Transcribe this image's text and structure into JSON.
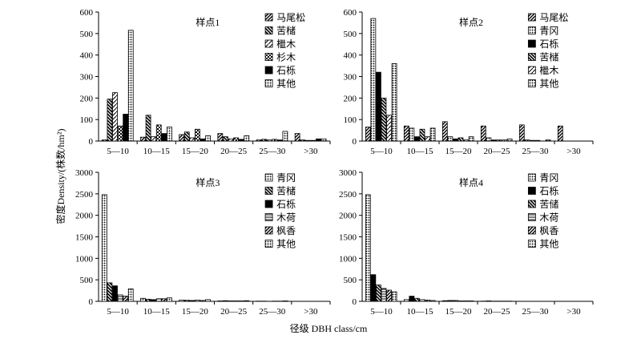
{
  "figure": {
    "ylabel": "密度Density/(株数/hm²)",
    "xlabel": "径级 DBH class/cm"
  },
  "chart_data": [
    {
      "type": "bar",
      "title": "样点1",
      "categories": [
        "5—10",
        "10—15",
        "15—20",
        "20—25",
        "25—30",
        ">30"
      ],
      "ylim": [
        0,
        600
      ],
      "yticks": [
        0,
        100,
        200,
        300,
        400,
        500,
        600
      ],
      "series": [
        {
          "name": "马尾松",
          "pattern": "slash",
          "values": [
            5,
            18,
            30,
            35,
            5,
            35
          ]
        },
        {
          "name": "苦槠",
          "pattern": "bdiag",
          "values": [
            195,
            120,
            42,
            20,
            8,
            5
          ]
        },
        {
          "name": "檵木",
          "pattern": "hatch",
          "values": [
            225,
            20,
            15,
            10,
            5,
            3
          ]
        },
        {
          "name": "杉木",
          "pattern": "grid",
          "values": [
            70,
            75,
            55,
            15,
            8,
            3
          ]
        },
        {
          "name": "石栎",
          "pattern": "solid",
          "values": [
            125,
            35,
            10,
            8,
            5,
            10
          ]
        },
        {
          "name": "其他",
          "pattern": "dots",
          "values": [
            515,
            65,
            25,
            25,
            45,
            10
          ]
        }
      ]
    },
    {
      "type": "bar",
      "title": "样点2",
      "categories": [
        "5—10",
        "10—15",
        "15—20",
        "20—25",
        "25—30",
        ">30"
      ],
      "ylim": [
        0,
        600
      ],
      "yticks": [
        0,
        100,
        200,
        300,
        400,
        500,
        600
      ],
      "series": [
        {
          "name": "马尾松",
          "pattern": "slash",
          "values": [
            65,
            70,
            90,
            70,
            75,
            70
          ]
        },
        {
          "name": "青冈",
          "pattern": "dots",
          "values": [
            570,
            60,
            20,
            15,
            5,
            0
          ]
        },
        {
          "name": "石栎",
          "pattern": "solid",
          "values": [
            320,
            20,
            10,
            5,
            3,
            0
          ]
        },
        {
          "name": "苦槠",
          "pattern": "bdiag",
          "values": [
            200,
            55,
            15,
            5,
            3,
            0
          ]
        },
        {
          "name": "檵木",
          "pattern": "hatch",
          "values": [
            120,
            20,
            5,
            5,
            0,
            0
          ]
        },
        {
          "name": "其他",
          "pattern": "dots",
          "values": [
            360,
            60,
            20,
            10,
            5,
            0
          ]
        }
      ]
    },
    {
      "type": "bar",
      "title": "样点3",
      "categories": [
        "5—10",
        "10—15",
        "15—20",
        "20—25",
        "25—30",
        ">30"
      ],
      "ylim": [
        0,
        3000
      ],
      "yticks": [
        0,
        500,
        1000,
        1500,
        2000,
        2500,
        3000
      ],
      "series": [
        {
          "name": "青冈",
          "pattern": "dots",
          "values": [
            2480,
            70,
            30,
            10,
            5,
            0
          ]
        },
        {
          "name": "苦槠",
          "pattern": "bdiag",
          "values": [
            430,
            50,
            25,
            15,
            5,
            0
          ]
        },
        {
          "name": "石栎",
          "pattern": "solid",
          "values": [
            360,
            40,
            20,
            10,
            0,
            0
          ]
        },
        {
          "name": "木荷",
          "pattern": "hlines",
          "values": [
            150,
            60,
            30,
            10,
            5,
            0
          ]
        },
        {
          "name": "枫香",
          "pattern": "slash",
          "values": [
            120,
            60,
            20,
            10,
            5,
            0
          ]
        },
        {
          "name": "其他",
          "pattern": "dots",
          "values": [
            290,
            80,
            40,
            15,
            10,
            0
          ]
        }
      ]
    },
    {
      "type": "bar",
      "title": "样点4",
      "categories": [
        "5—10",
        "10—15",
        "15—20",
        "20—25",
        "25—30",
        ">30"
      ],
      "ylim": [
        0,
        3000
      ],
      "yticks": [
        0,
        500,
        1000,
        1500,
        2000,
        2500,
        3000
      ],
      "series": [
        {
          "name": "青冈",
          "pattern": "dots",
          "values": [
            2480,
            40,
            15,
            5,
            0,
            0
          ]
        },
        {
          "name": "石栎",
          "pattern": "solid",
          "values": [
            620,
            120,
            20,
            10,
            0,
            0
          ]
        },
        {
          "name": "苦储",
          "pattern": "bdiag",
          "values": [
            380,
            70,
            20,
            5,
            0,
            0
          ]
        },
        {
          "name": "木荷",
          "pattern": "hlines",
          "values": [
            300,
            40,
            10,
            5,
            0,
            0
          ]
        },
        {
          "name": "枫香",
          "pattern": "slash",
          "values": [
            260,
            30,
            10,
            5,
            0,
            0
          ]
        },
        {
          "name": "其他",
          "pattern": "dots",
          "values": [
            220,
            20,
            10,
            5,
            0,
            0
          ]
        }
      ]
    }
  ]
}
